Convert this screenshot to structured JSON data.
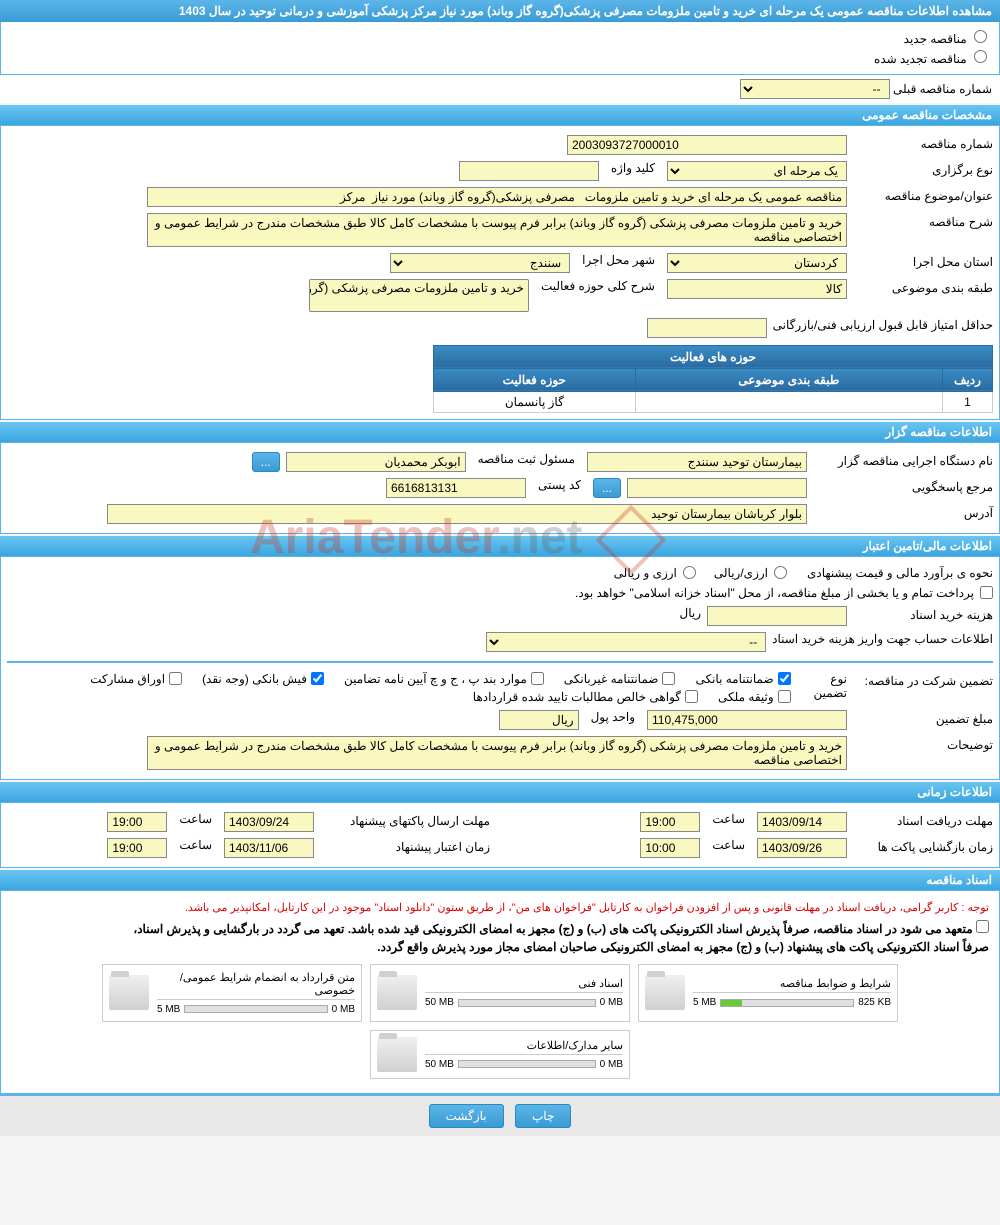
{
  "title": "مشاهده اطلاعات مناقصه عمومی یک مرحله ای خرید و تامین ملزومات مصرفی پزشکی(گروه گاز وباند) مورد نیاز مرکز پزشکی آموزشی و درمانی توحید در سال 1403",
  "radio": {
    "new_tender": "مناقصه جدید",
    "renewed_tender": "مناقصه تجدید شده"
  },
  "prev_number": {
    "label": "شماره مناقصه قبلی",
    "value": "--"
  },
  "sections": {
    "general": "مشخصات مناقصه عمومی",
    "organizer": "اطلاعات مناقصه گزار",
    "financial": "اطلاعات مالی/تامین اعتبار",
    "timing": "اطلاعات زمانی",
    "documents": "اسناد مناقصه"
  },
  "general": {
    "tender_number_label": "شماره مناقصه",
    "tender_number": "2003093727000010",
    "type_label": "نوع برگزاری",
    "type_value": "یک مرحله ای",
    "keyword_label": "کلید واژه",
    "keyword_value": "",
    "subject_label": "عنوان/موضوع مناقصه",
    "subject_value": "مناقصه عمومی یک مرحله ای خرید و تامین ملزومات   مصرفی پزشکی(گروه گاز وباند) مورد نیاز  مرکز",
    "desc_label": "شرح مناقصه",
    "desc_value": "خرید و تامین ملزومات مصرفی پزشکی (گروه گاز وباند) برابر فرم پیوست با مشخصات کامل کالا طبق مشخصات مندرج در شرایط عمومی و اختصاصی مناقصه",
    "province_label": "استان محل اجرا",
    "province_value": "کردستان",
    "city_label": "شهر محل اجرا",
    "city_value": "سنندج",
    "category_label": "طبقه بندی موضوعی",
    "category_value": "کالا",
    "activity_scope_label": "شرح کلی حوزه فعالیت",
    "activity_scope_value": "خرید و تامین ملزومات مصرفی پزشکی (گروه گاز",
    "min_score_label": "حداقل امتیاز قابل قبول ارزیابی فنی/بازرگانی",
    "min_score_value": ""
  },
  "activity_table": {
    "header": "حوزه های فعالیت",
    "col_row": "ردیف",
    "col_category": "طبقه بندی موضوعی",
    "col_scope": "حوزه فعالیت",
    "rows": [
      {
        "n": "1",
        "category": "",
        "scope": "گاز پانسمان"
      }
    ]
  },
  "organizer": {
    "agency_label": "نام دستگاه اجرایی مناقصه گزار",
    "agency_value": "بیمارستان توحید سنندج",
    "officer_label": "مسئول ثبت مناقصه",
    "officer_value": "ابوبکر محمدیان",
    "contact_label": "مرجع پاسخگویی",
    "contact_value": "",
    "postal_label": "کد پستی",
    "postal_value": "6616813131",
    "address_label": "آدرس",
    "address_value": "بلوار کرباشان بیمارستان توحید",
    "more_btn": "..."
  },
  "watermark": {
    "part1": "AriaTender",
    "part2": ".net"
  },
  "financial": {
    "method_label": "نحوه ی برآورد مالی و قیمت پیشنهادی",
    "method_opt1": "ارزی/ریالی",
    "method_opt2": "ارزی و ریالی",
    "treasury_note": "پرداخت تمام و یا بخشی از مبلغ مناقصه، از محل \"اسناد خزانه اسلامی\" خواهد بود.",
    "doc_cost_label": "هزینه خرید اسناد",
    "doc_cost_value": "",
    "currency_rial": "ریال",
    "account_info_label": "اطلاعات حساب جهت واریز هزینه خرید اسناد",
    "account_info_value": "--",
    "guarantee_label": "تضمین شرکت در مناقصه:",
    "guarantee_type_label": "نوع تضمین",
    "guarantee_types": {
      "bank_guarantee": "ضمانتنامه بانکی",
      "nonbank_guarantee": "ضمانتنامه غیربانکی",
      "bylaw": "موارد بند پ ، ج و چ آیین نامه تضامین",
      "bank_receipt": "فیش بانکی (وجه نقد)",
      "participation_bonds": "اوراق مشارکت",
      "property_deed": "وثیقه ملکی",
      "receivables": "گواهی خالص مطالبات تایید شده قراردادها"
    },
    "guarantee_amount_label": "مبلغ تضمین",
    "guarantee_amount_value": "110,475,000",
    "currency_unit_label": "واحد پول",
    "currency_unit_value": "ریال",
    "notes_label": "توضیحات",
    "notes_value": "خرید و تامین ملزومات مصرفی پزشکی (گروه گاز وباند) برابر فرم پیوست با مشخصات کامل کالا طبق مشخصات مندرج در شرایط عمومی و اختصاصی مناقصه"
  },
  "timing": {
    "receive_docs_label": "مهلت دریافت اسناد",
    "receive_docs_date": "1403/09/14",
    "time_label": "ساعت",
    "receive_docs_time": "19:00",
    "submit_label": "مهلت ارسال پاکتهای پیشنهاد",
    "submit_date": "1403/09/24",
    "submit_time": "19:00",
    "opening_label": "زمان بازگشایی پاکت ها",
    "opening_date": "1403/09/26",
    "opening_time": "10:00",
    "validity_label": "زمان اعتبار پیشنهاد",
    "validity_date": "1403/11/06",
    "validity_time": "19:00"
  },
  "documents": {
    "notice_red": "توجه : کاربر گرامی، دریافت اسناد در مهلت قانونی و پس از افزودن فراخوان به کارتابل \"فراخوان های من\"، از طریق ستون \"دانلود اسناد\" موجود در این کارتابل، امکانپذیر می باشد.",
    "notice1": "متعهد می شود در اسناد مناقصه، صرفاً پذیرش اسناد الکترونیکی پاکت های (ب) و (ج) مجهز به امضای الکترونیکی قید شده باشد. تعهد می گردد در بارگشایی و پذیرش اسناد،",
    "notice2": "صرفاً اسناد الکترونیکی پاکت های پیشنهاد (ب) و (ج) مجهز به امضای الکترونیکی صاحبان امضای مجاز مورد پذیرش واقع گردد.",
    "cards": [
      {
        "title": "شرایط و ضوابط مناقصه",
        "used": "825 KB",
        "total": "5 MB",
        "fill": 16
      },
      {
        "title": "اسناد فنی",
        "used": "0 MB",
        "total": "50 MB",
        "fill": 0
      },
      {
        "title": "متن قرارداد به انضمام شرایط عمومی/خصوصی",
        "used": "0 MB",
        "total": "5 MB",
        "fill": 0
      },
      {
        "title": "سایر مدارک/اطلاعات",
        "used": "0 MB",
        "total": "50 MB",
        "fill": 0
      }
    ]
  },
  "footer": {
    "print": "چاپ",
    "back": "بازگشت"
  }
}
